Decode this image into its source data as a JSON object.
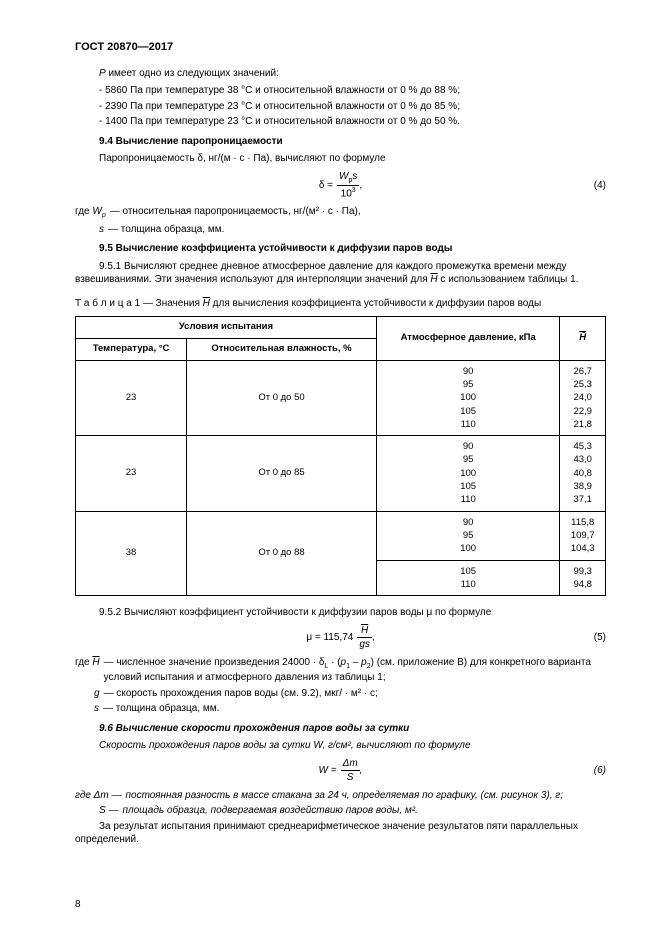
{
  "doc": {
    "header": "ГОСТ 20870—2017"
  },
  "p_intro": "P имеет одно из следующих значений:",
  "p_items": [
    "-  5860 Па при температуре 38 °С и относительной влажности от 0 % до 88 %;",
    "-  2390 Па при температуре 23 °С и относительной влажности от 0 % до 85 %;",
    "-  1400 Па при температуре 23 °С и относительной влажности от 0 % до 50 %."
  ],
  "sec94": {
    "title": "9.4  Вычисление паропроницаемости",
    "intro": "Паропроницаемость δ, нг/(м · с · Па), вычисляют по формуле",
    "formula": {
      "lhs": "δ =",
      "num": "4"
    },
    "where": [
      {
        "lbl": "где W",
        "sub": "p",
        "txt": " — относительная паропроницаемость, нг/(м² · с · Па),"
      },
      {
        "lbl": "s",
        "txt": " — толщина образца, мм."
      }
    ]
  },
  "sec95": {
    "title": "9.5  Вычисление коэффициента устойчивости к диффузии паров воды",
    "p951": "9.5.1 Вычисляют среднее дневное атмосферное давление для каждого промежутка времени между взвешиваниями. Эти значения используют для интерполяции значений для ",
    "p951b": " с использованием таблицы 1.",
    "tcap_a": "Т а б л и ц а  1 — Значения ",
    "tcap_b": " для вычисления коэффициента устойчивости к диффузии паров воды",
    "p952": "9.5.2 Вычисляют коэффициент устойчивости к диффузии паров воды μ по формуле",
    "f5": {
      "lhs": "μ = 115,74",
      "num": "5"
    },
    "where": [
      {
        "lbl": "где",
        "sym": "H̄",
        "txt": " — численное значение произведения 24000 · δ",
        "sub": "L",
        "txt2": " · (p₁ – p₂) (см. приложение В) для конкретного варианта условий испытания и атмосферного давления из таблицы 1;"
      },
      {
        "sym": "g",
        "txt": " — скорость прохождения паров воды (см. 9.2), мкг/ · м² · с;"
      },
      {
        "sym": "s",
        "txt": " — толщина образца, мм."
      }
    ]
  },
  "table1": {
    "head": {
      "cond": "Условия испытания",
      "temp": "Температура, °С",
      "rh": "Относительная влажность, %",
      "press": "Атмосферное давление, кПа",
      "h": "H̄"
    },
    "rows": [
      {
        "t": "23",
        "rh": "От 0 до 50",
        "press": [
          "90",
          "95",
          "100",
          "105",
          "110"
        ],
        "h": [
          "26,7",
          "25,3",
          "24,0",
          "22,9",
          "21,8"
        ]
      },
      {
        "t": "23",
        "rh": "От 0 до 85",
        "press": [
          "90",
          "95",
          "100",
          "105",
          "110"
        ],
        "h": [
          "45,3",
          "43,0",
          "40,8",
          "38,9",
          "37,1"
        ]
      },
      {
        "t": "38",
        "rh": "От 0 до 88",
        "press_a": [
          "90",
          "95",
          "100"
        ],
        "h_a": [
          "115,8",
          "109,7",
          "104,3"
        ],
        "press_b": [
          "105",
          "110"
        ],
        "h_b": [
          "99,3",
          "94,8"
        ]
      }
    ]
  },
  "sec96": {
    "title": "9.6  Вычисление скорости прохождения паров воды за сутки",
    "intro": "Скорость прохождения паров воды за сутки W, г/см², вычисляют по формуле",
    "f6": {
      "lhs": "W =",
      "num": "6"
    },
    "where": [
      {
        "lbl": "где Δm — ",
        "txt": "постоянная разность в массе стакана за 24 ч, определяемая по графику, (см. рисунок 3), г;"
      },
      {
        "lbl": "S — ",
        "txt": "площадь образца, подвергаемая воздействию паров воды, м²."
      }
    ],
    "concl": "За результат испытания принимают среднеарифметическое значение результатов пяти параллельных определений."
  },
  "page_num": "8"
}
